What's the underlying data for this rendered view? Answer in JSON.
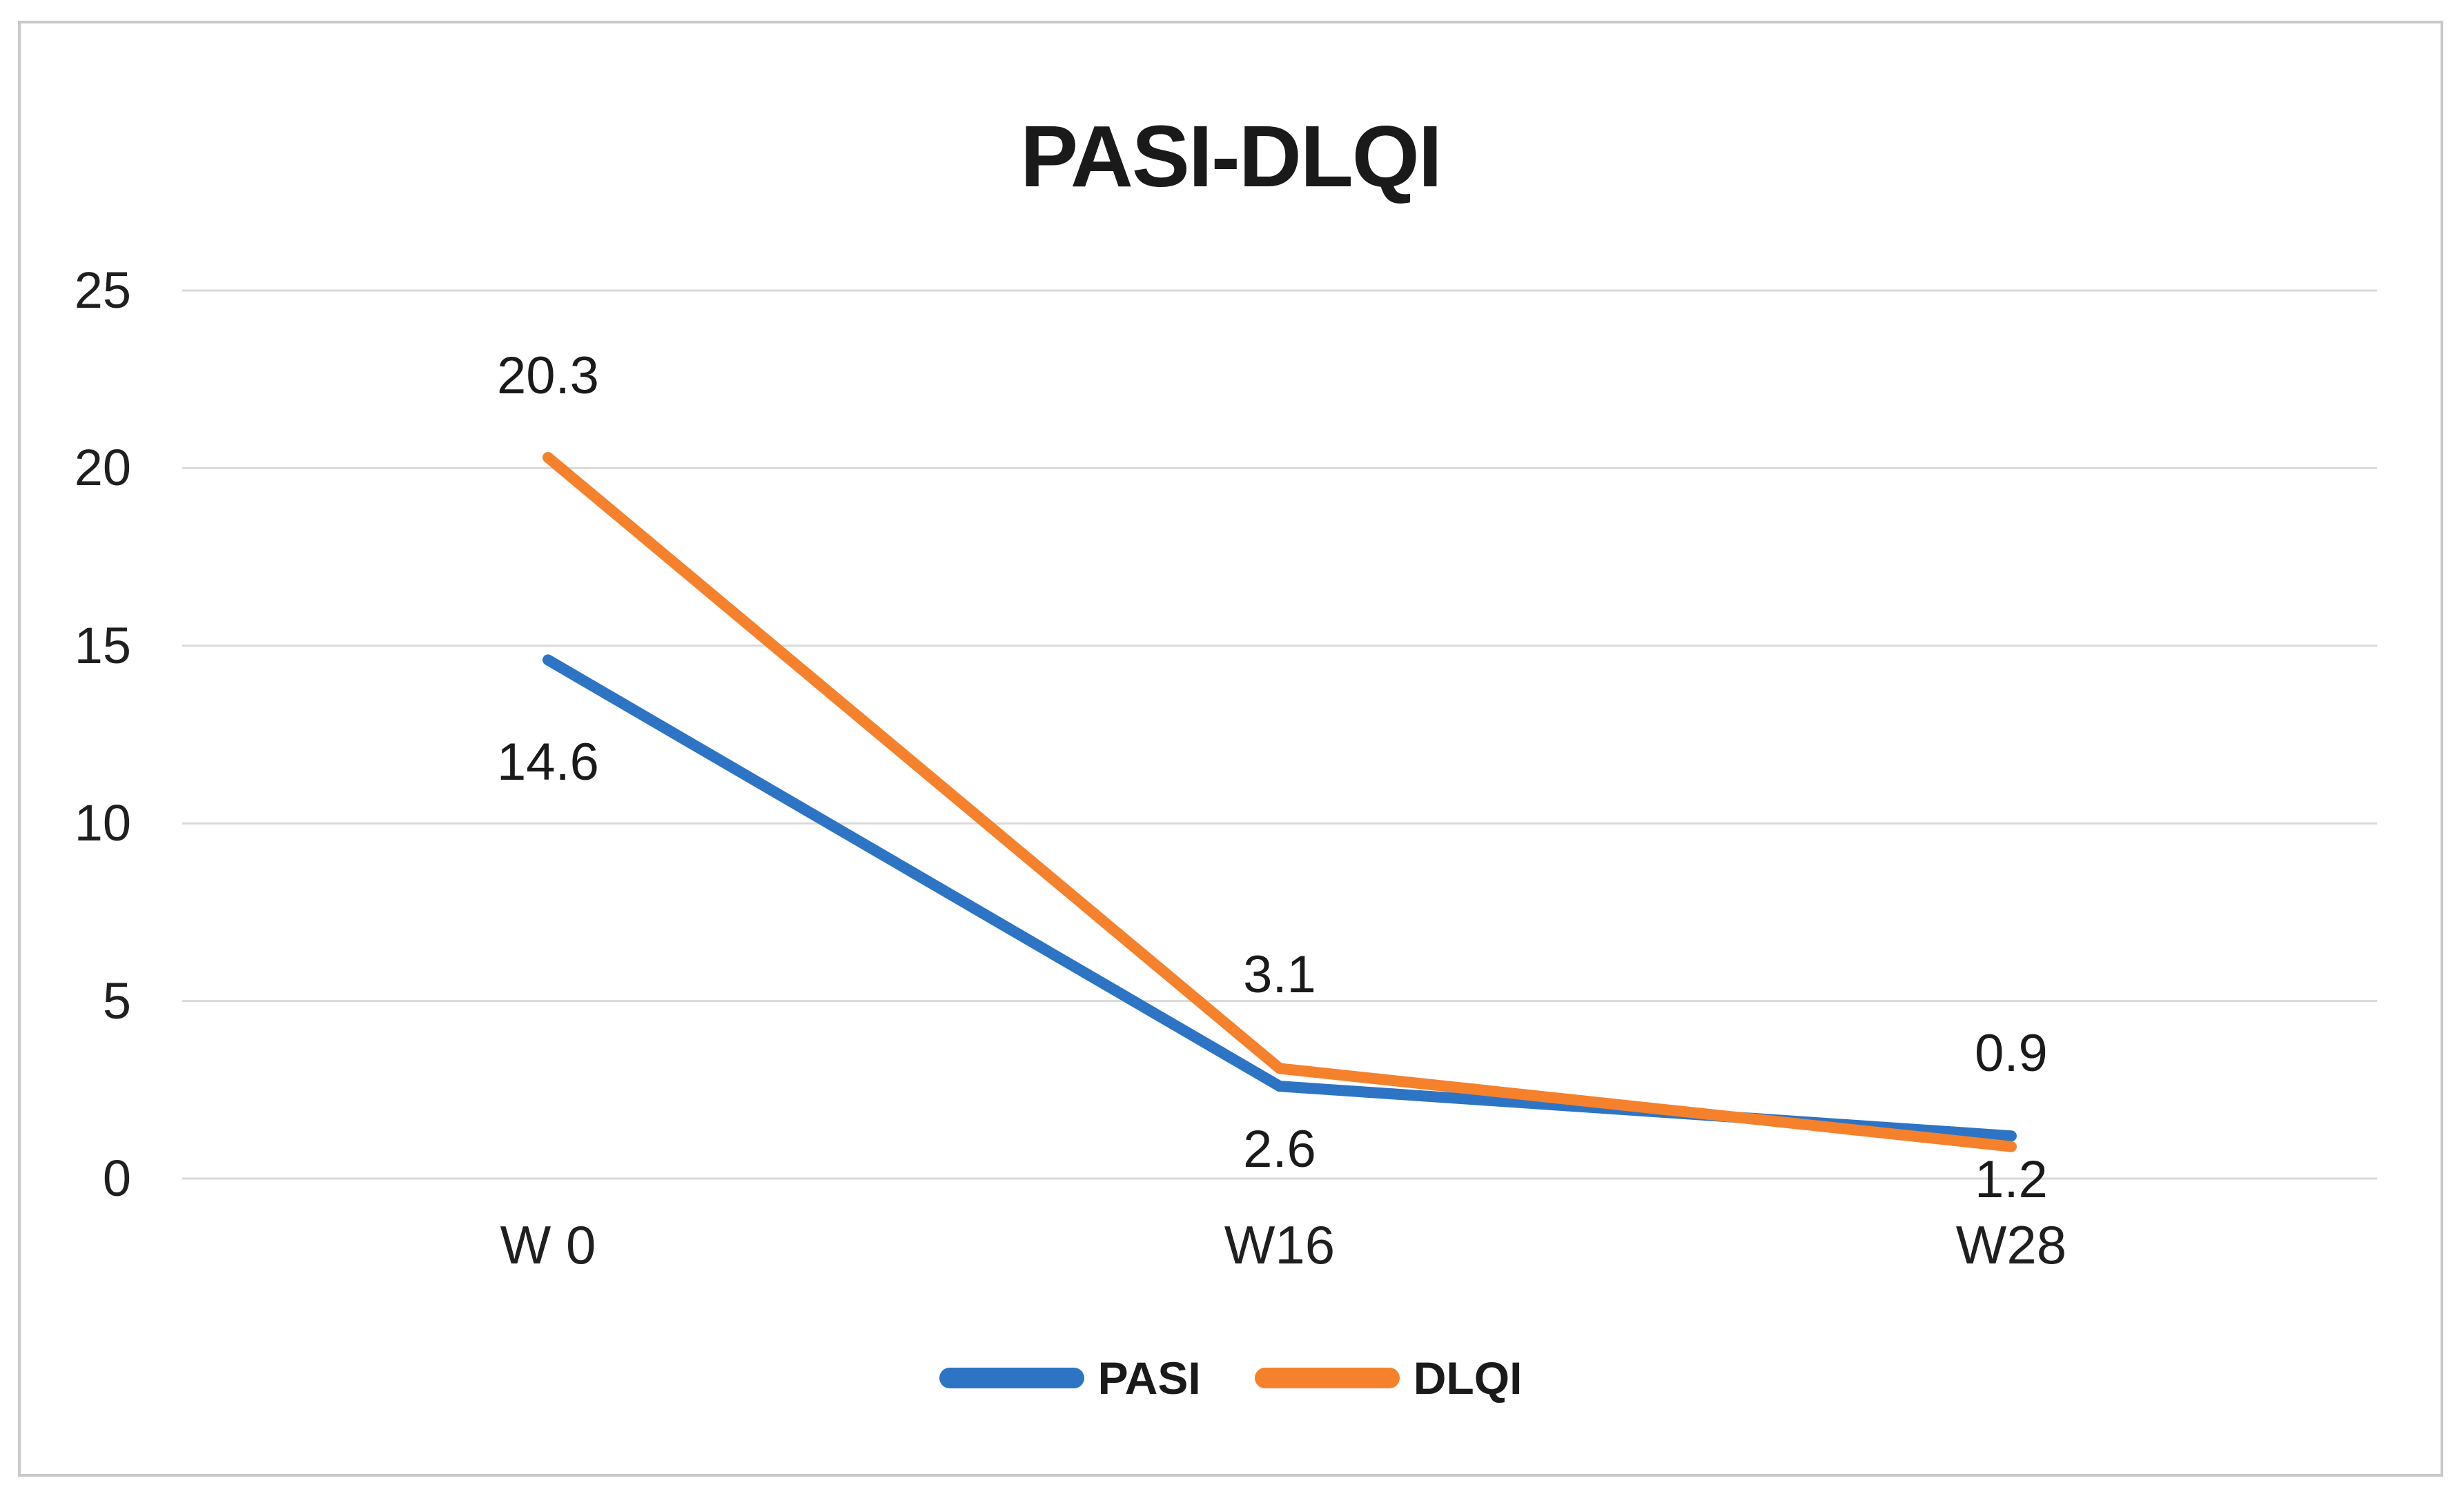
{
  "figure": {
    "background": "#FFFFFF",
    "border_color": "#C9C9C9",
    "text_color": "#1F1F1F"
  },
  "chart_data": {
    "type": "line",
    "title": "PASI-DLQI",
    "categories": [
      "W 0",
      "W16",
      "W28"
    ],
    "series": [
      {
        "name": "PASI",
        "values": [
          14.6,
          2.6,
          1.2
        ],
        "data_labels": [
          "14.6",
          "2.6",
          "1.2"
        ],
        "color": "#2E74C4",
        "label_position": "below"
      },
      {
        "name": "DLQI",
        "values": [
          20.3,
          3.1,
          0.9
        ],
        "data_labels": [
          "20.3",
          "3.1",
          "0.9"
        ],
        "color": "#F5812C",
        "label_position": "above"
      }
    ],
    "xlabel": "",
    "ylabel": "",
    "ylim": [
      0,
      25
    ],
    "yticks": [
      0,
      5,
      10,
      15,
      20,
      25
    ],
    "ytick_labels": [
      "0",
      "5",
      "10",
      "15",
      "20",
      "25"
    ],
    "grid": "horizontal",
    "gridline_color": "#D9D9D9",
    "legend_position": "bottom",
    "legend": [
      "PASI",
      "DLQI"
    ]
  }
}
